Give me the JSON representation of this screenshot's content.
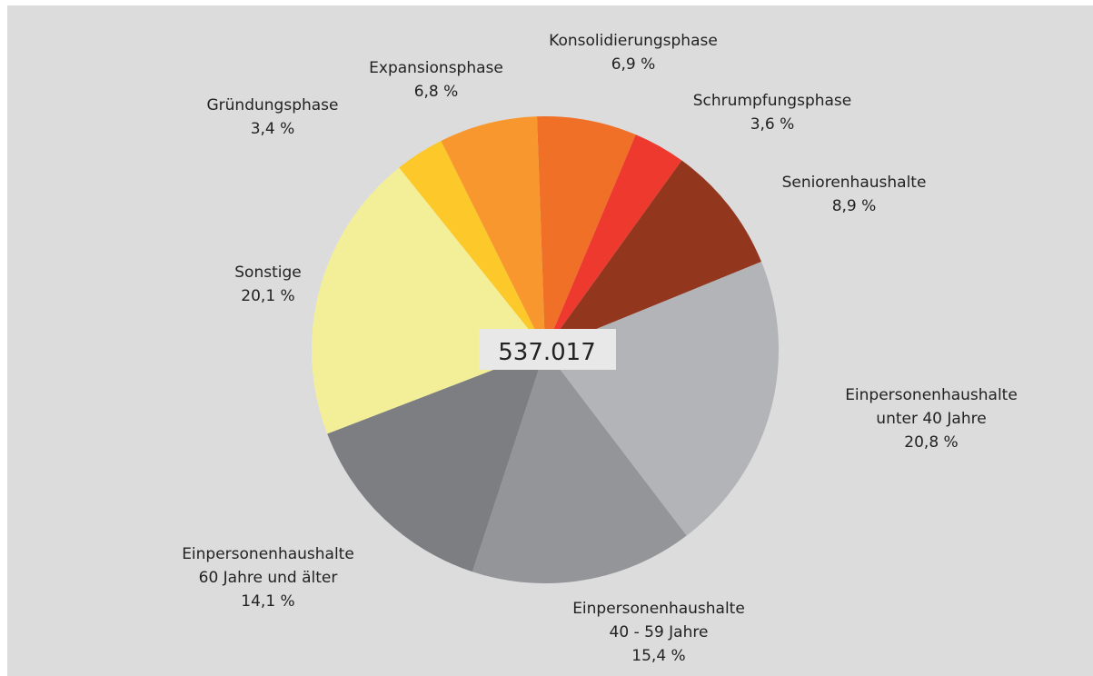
{
  "chart_data": {
    "type": "pie",
    "center_label": "537.017",
    "categories": [
      "Konsolidierungsphase",
      "Schrumpfungsphase",
      "Seniorenhaushalte",
      "Einpersonenhaushalte\nunter 40 Jahre",
      "Einpersonenhaushalte\n40 - 59 Jahre",
      "Einpersonenhaushalte\n60 Jahre und älter",
      "Sonstige",
      "Gründungsphase",
      "Expansionsphase"
    ],
    "values": [
      6.9,
      3.6,
      8.9,
      20.8,
      15.4,
      14.1,
      20.1,
      3.4,
      6.8
    ],
    "value_labels": [
      "6,9 %",
      "3,6 %",
      "8,9 %",
      "20,8 %",
      "15,4 %",
      "14,1 %",
      "20,1 %",
      "3,4 %",
      "6,8 %"
    ],
    "colors": [
      "#f07028",
      "#ee3a2e",
      "#93361e",
      "#b3b4b7",
      "#939598",
      "#7d7e82",
      "#f3ef99",
      "#fdc829",
      "#f7972d"
    ]
  }
}
